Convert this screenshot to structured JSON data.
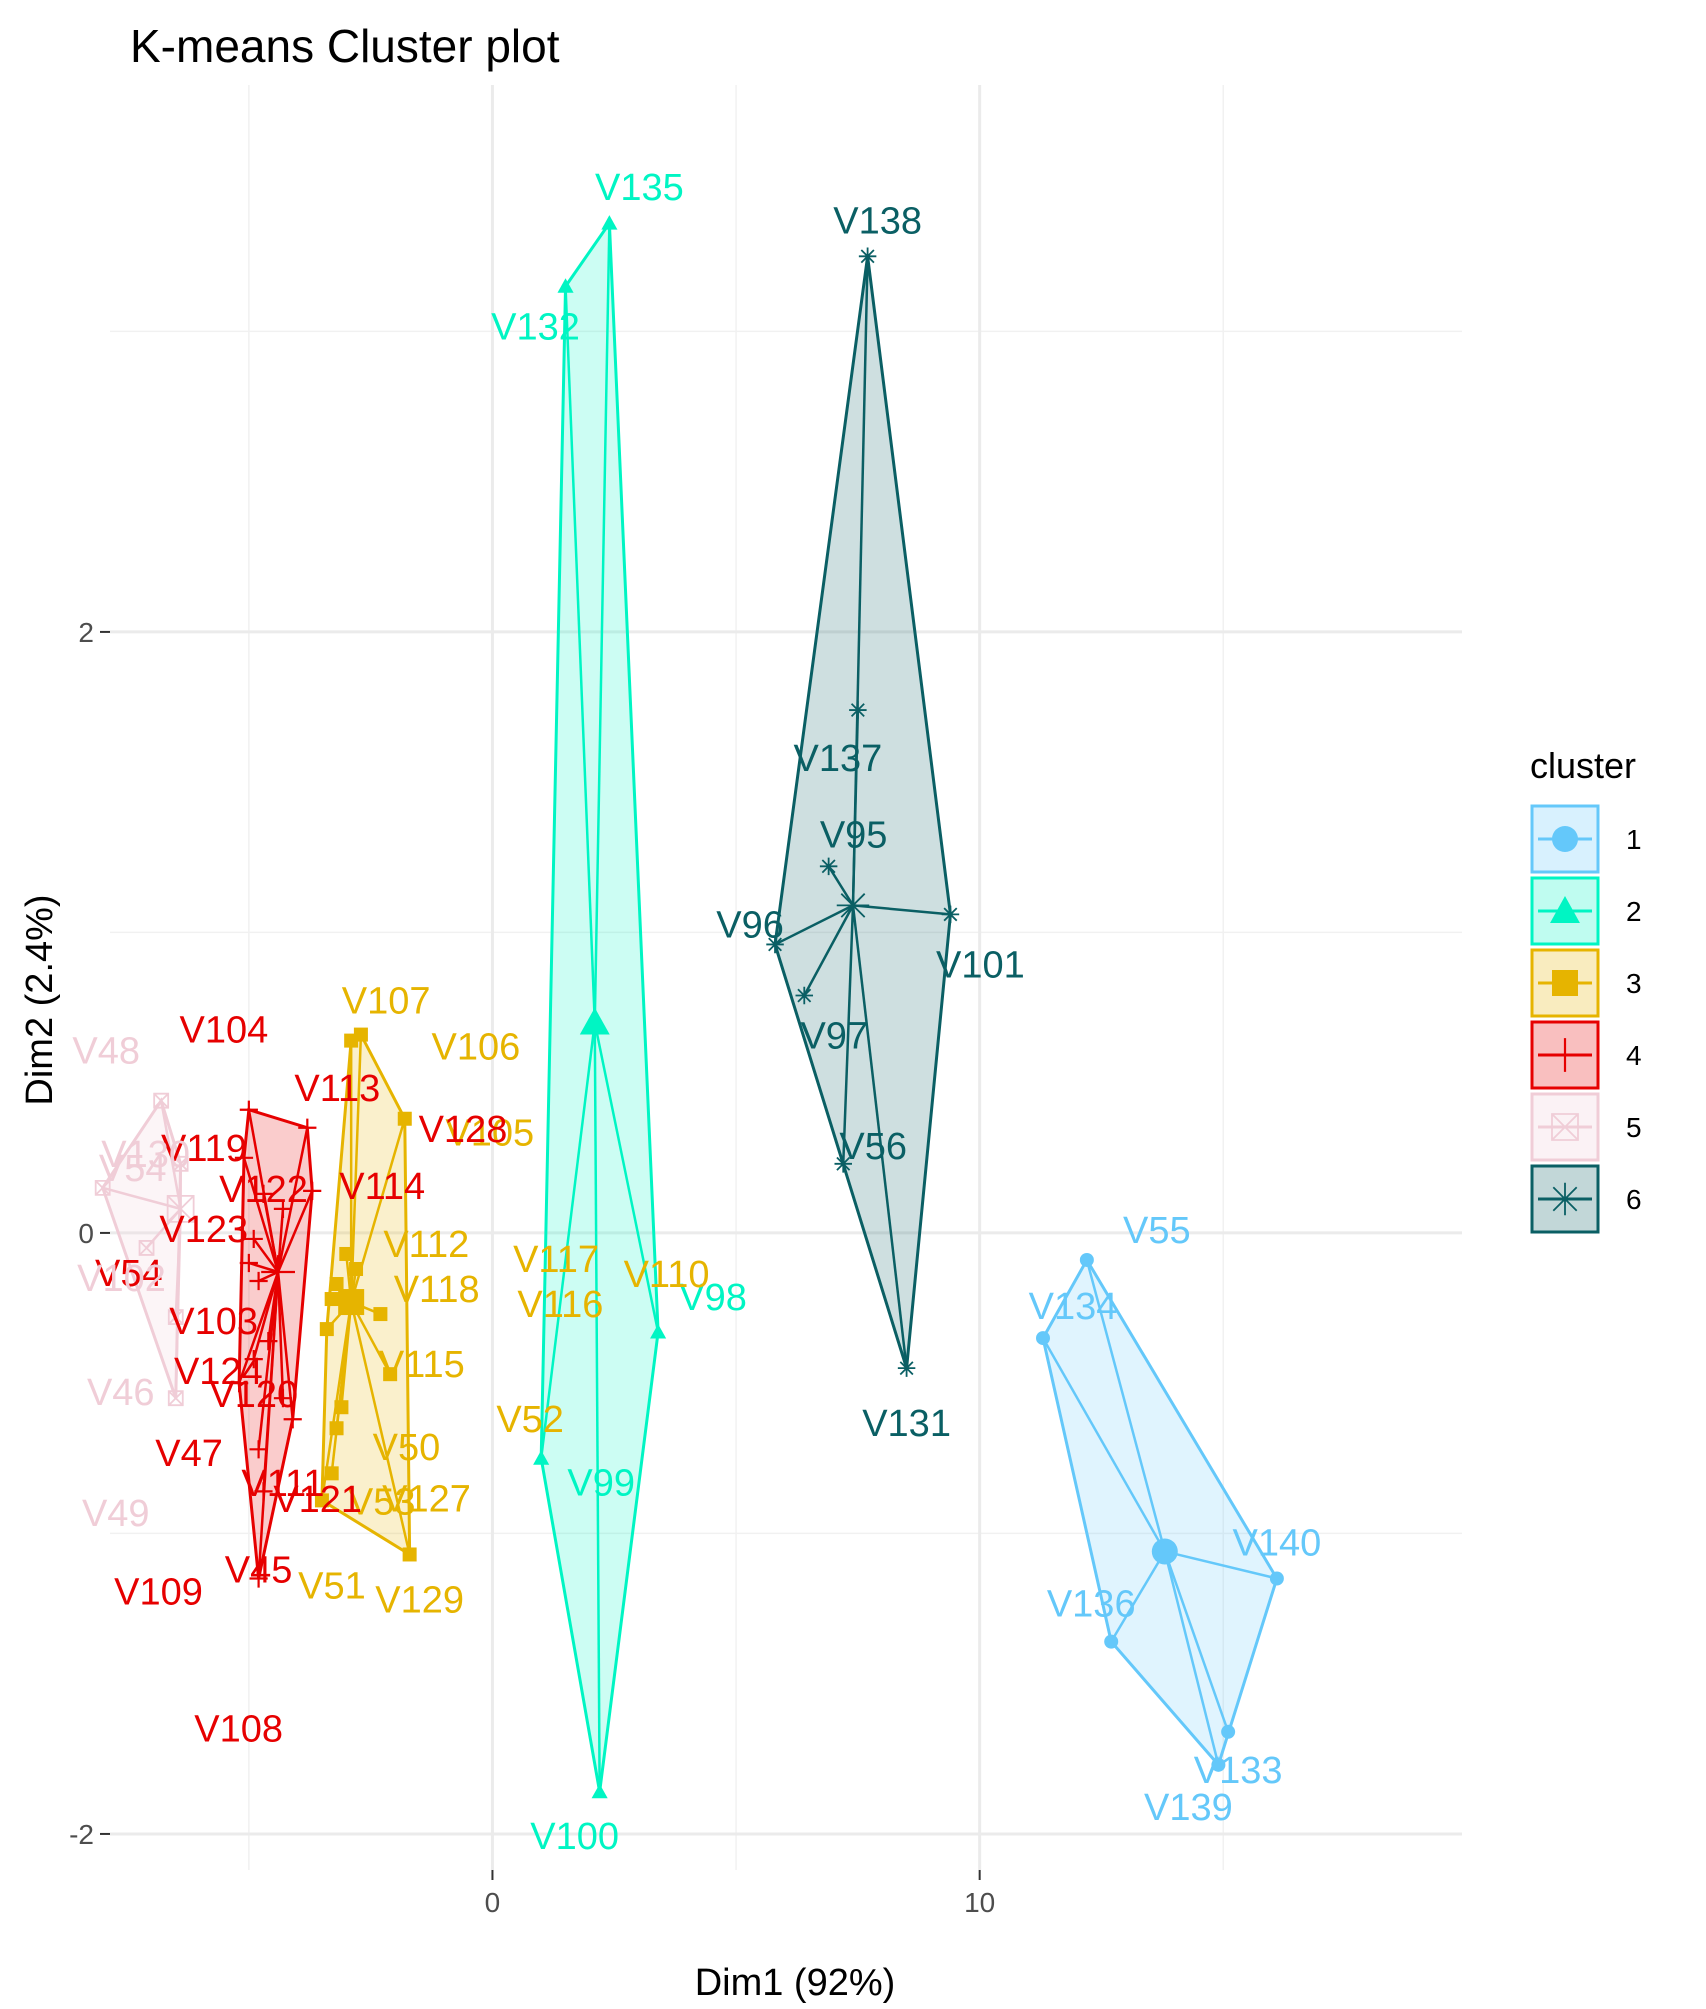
{
  "chart_data": {
    "type": "scatter",
    "title": "K-means Cluster plot",
    "xlabel": "Dim1 (92%)",
    "ylabel": "Dim2 (2.4%)",
    "xlim": [
      -7.85,
      19.9
    ],
    "ylim": [
      -2.12,
      3.82
    ],
    "xticks": [
      0,
      10
    ],
    "yticks": [
      -2,
      0,
      2
    ],
    "xgrid_minor": [
      -5,
      5,
      15
    ],
    "ygrid_minor": [
      -1,
      1,
      3
    ],
    "legend": {
      "title": "cluster",
      "position": "right"
    },
    "clusters": [
      {
        "name": "1",
        "color": "#64C8FA",
        "shape": "circle",
        "center": [
          13.8,
          -1.06
        ],
        "points": [
          {
            "label": "V55",
            "x": 12.2,
            "y": -0.09
          },
          {
            "label": "V134",
            "x": 11.3,
            "y": -0.35
          },
          {
            "label": "V140",
            "x": 16.1,
            "y": -1.15
          },
          {
            "label": "V136",
            "x": 12.7,
            "y": -1.36
          },
          {
            "label": "V133",
            "x": 15.1,
            "y": -1.66
          },
          {
            "label": "V139",
            "x": 14.9,
            "y": -1.77
          }
        ]
      },
      {
        "name": "2",
        "color": "#00F5C3",
        "shape": "triangle",
        "center": [
          2.1,
          0.7
        ],
        "points": [
          {
            "label": "V135",
            "x": 2.4,
            "y": 3.36
          },
          {
            "label": "V132",
            "x": 1.5,
            "y": 3.15
          },
          {
            "label": "V98",
            "x": 3.4,
            "y": -0.33
          },
          {
            "label": "V99",
            "x": 1.0,
            "y": -0.75
          },
          {
            "label": "V100",
            "x": 2.2,
            "y": -1.86
          }
        ]
      },
      {
        "name": "3",
        "color": "#E6B400",
        "shape": "square",
        "center": [
          -2.9,
          -0.23
        ],
        "points": [
          {
            "label": "V107",
            "x": -2.9,
            "y": 0.64
          },
          {
            "label": "V106",
            "x": -2.7,
            "y": 0.66
          },
          {
            "label": "V105",
            "x": -1.8,
            "y": 0.38
          },
          {
            "label": "V112",
            "x": -3.0,
            "y": -0.07
          },
          {
            "label": "V117",
            "x": -2.8,
            "y": -0.12
          },
          {
            "label": "V110",
            "x": -3.2,
            "y": -0.17
          },
          {
            "label": "V118",
            "x": -3.3,
            "y": -0.22
          },
          {
            "label": "V116",
            "x": -2.3,
            "y": -0.27
          },
          {
            "label": "V115",
            "x": -3.4,
            "y": -0.32
          },
          {
            "label": "V52",
            "x": -2.1,
            "y": -0.47
          },
          {
            "label": "V50",
            "x": -3.1,
            "y": -0.58
          },
          {
            "label": "V127",
            "x": -3.2,
            "y": -0.65
          },
          {
            "label": "V53",
            "x": -3.3,
            "y": -0.8
          },
          {
            "label": "V51",
            "x": -3.5,
            "y": -0.89
          },
          {
            "label": "V129",
            "x": -1.7,
            "y": -1.07
          }
        ]
      },
      {
        "name": "4",
        "color": "#E60000",
        "shape": "plus",
        "center": [
          -4.4,
          -0.13
        ],
        "points": [
          {
            "label": "V104",
            "x": -5.0,
            "y": 0.41
          },
          {
            "label": "V113",
            "x": -3.8,
            "y": 0.35
          },
          {
            "label": "V119",
            "x": -5.1,
            "y": 0.25
          },
          {
            "label": "V114",
            "x": -3.7,
            "y": 0.14
          },
          {
            "label": "V122",
            "x": -4.7,
            "y": 0.13
          },
          {
            "label": "V128",
            "x": -4.3,
            "y": 0.08
          },
          {
            "label": "V123",
            "x": -4.9,
            "y": -0.02
          },
          {
            "label": "V54",
            "x": -5.0,
            "y": -0.1
          },
          {
            "label": "V103",
            "x": -4.8,
            "y": -0.16
          },
          {
            "label": "V124",
            "x": -4.6,
            "y": -0.36
          },
          {
            "label": "V120",
            "x": -4.9,
            "y": -0.42
          },
          {
            "label": "V47",
            "x": -5.2,
            "y": -0.5
          },
          {
            "label": "V111",
            "x": -4.3,
            "y": -0.55
          },
          {
            "label": "V121",
            "x": -4.1,
            "y": -0.62
          },
          {
            "label": "V45",
            "x": -4.8,
            "y": -0.72
          },
          {
            "label": "V109",
            "x": -4.7,
            "y": -0.86
          },
          {
            "label": "V108",
            "x": -4.8,
            "y": -1.15
          }
        ]
      },
      {
        "name": "5",
        "color": "#F0CDD7",
        "shape": "square-x",
        "center": [
          -6.4,
          0.08
        ],
        "points": [
          {
            "label": "V48",
            "x": -6.8,
            "y": 0.44
          },
          {
            "label": "V130",
            "x": -6.4,
            "y": 0.23
          },
          {
            "label": "V54",
            "x": -8.0,
            "y": 0.15
          },
          {
            "label": "V102",
            "x": -7.1,
            "y": -0.05
          },
          {
            "label": "V46",
            "x": -6.5,
            "y": -0.28
          },
          {
            "label": "V49",
            "x": -6.5,
            "y": -0.55
          }
        ]
      },
      {
        "name": "6",
        "color": "#0A5F64",
        "shape": "asterisk",
        "center": [
          7.4,
          1.09
        ],
        "points": [
          {
            "label": "V138",
            "x": 7.7,
            "y": 3.25
          },
          {
            "label": "V137",
            "x": 7.5,
            "y": 1.74
          },
          {
            "label": "V95",
            "x": 6.9,
            "y": 1.22
          },
          {
            "label": "V96",
            "x": 5.8,
            "y": 0.96
          },
          {
            "label": "V101",
            "x": 9.4,
            "y": 1.06
          },
          {
            "label": "V97",
            "x": 6.4,
            "y": 0.79
          },
          {
            "label": "V56",
            "x": 7.2,
            "y": 0.23
          },
          {
            "label": "V131",
            "x": 8.5,
            "y": -0.45
          }
        ]
      }
    ]
  }
}
